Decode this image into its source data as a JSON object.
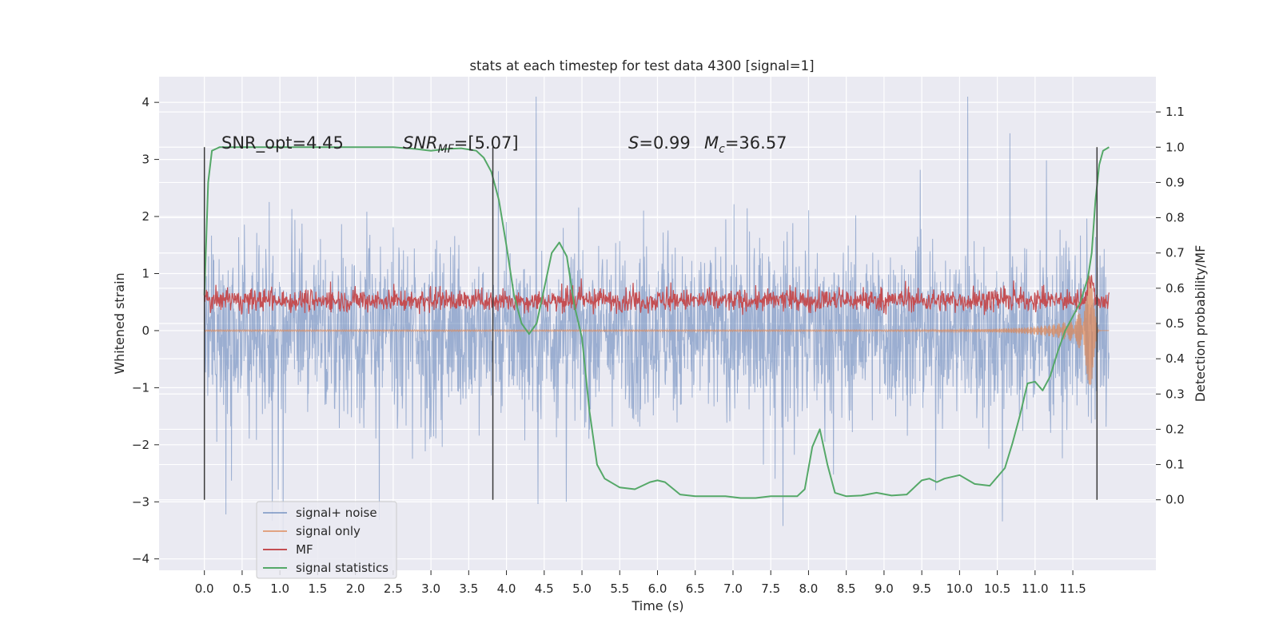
{
  "chart_data": {
    "type": "line",
    "title": "stats at each timestep for test data 4300 [signal=1]",
    "xlabel": "Time (s)",
    "ylabel": "Whitened strain",
    "y2label": "Detection probability/MF",
    "xlim": [
      -0.6,
      12.6
    ],
    "ylim": [
      -4.2,
      4.45
    ],
    "y2lim": [
      -0.2,
      1.2
    ],
    "xticks": [
      "0.0",
      "0.5",
      "1.0",
      "1.5",
      "2.0",
      "2.5",
      "3.0",
      "3.5",
      "4.0",
      "4.5",
      "5.0",
      "5.5",
      "6.0",
      "6.5",
      "7.0",
      "7.5",
      "8.0",
      "8.5",
      "9.0",
      "9.5",
      "10.0",
      "10.5",
      "11.0",
      "11.5"
    ],
    "yticks": [
      "4",
      "3",
      "2",
      "1",
      "0",
      "−1",
      "−2",
      "−3",
      "−4"
    ],
    "y2ticks": [
      "1.1",
      "1.0",
      "0.9",
      "0.8",
      "0.7",
      "0.6",
      "0.5",
      "0.4",
      "0.3",
      "0.2",
      "0.1",
      "0.0"
    ],
    "grid": true,
    "legend_position": "lower-left",
    "annotations": {
      "snr_opt": "SNR_opt=4.45",
      "snr_mf_symbol": "SNR",
      "snr_mf_sub": "MF",
      "snr_mf_value": "=[5.07]",
      "s_symbol": "S",
      "s_value": "=0.99",
      "mc_symbol": "M",
      "mc_sub": "c",
      "mc_value": "=36.57"
    },
    "vertical_markers_x": [
      0.0,
      3.82,
      11.82
    ],
    "series": [
      {
        "name": "signal+ noise",
        "color": "#4c72b0",
        "axis": "left",
        "kind": "noise",
        "t_end": 11.98,
        "y_range": [
          -3.7,
          4.1
        ]
      },
      {
        "name": "signal only",
        "color": "#dd8452",
        "axis": "left",
        "kind": "chirp",
        "t_end": 11.98,
        "y_range": [
          -1.25,
          1.05
        ]
      },
      {
        "name": "MF",
        "color": "#c44e52",
        "axis": "right",
        "kind": "mf",
        "t_end": 11.98,
        "y_range": [
          0.48,
          0.65
        ]
      },
      {
        "name": "signal statistics",
        "color": "#55a868",
        "axis": "right",
        "kind": "line",
        "x": [
          0.0,
          0.05,
          0.1,
          0.15,
          0.2,
          0.3,
          0.5,
          1.0,
          1.5,
          2.0,
          2.5,
          2.8,
          3.0,
          3.2,
          3.4,
          3.6,
          3.7,
          3.8,
          3.85,
          3.9,
          4.0,
          4.1,
          4.2,
          4.3,
          4.4,
          4.5,
          4.6,
          4.7,
          4.8,
          4.9,
          5.0,
          5.1,
          5.2,
          5.3,
          5.5,
          5.7,
          5.9,
          6.0,
          6.1,
          6.3,
          6.5,
          6.7,
          6.9,
          7.1,
          7.3,
          7.5,
          7.7,
          7.85,
          7.95,
          8.05,
          8.15,
          8.25,
          8.35,
          8.5,
          8.7,
          8.9,
          9.1,
          9.3,
          9.5,
          9.6,
          9.7,
          9.8,
          10.0,
          10.2,
          10.4,
          10.6,
          10.7,
          10.8,
          10.9,
          11.0,
          11.1,
          11.2,
          11.3,
          11.4,
          11.5,
          11.6,
          11.7,
          11.75,
          11.8,
          11.85,
          11.9,
          11.98
        ],
        "y": [
          0.58,
          0.9,
          0.99,
          0.995,
          1.0,
          1.0,
          1.0,
          1.0,
          1.0,
          1.0,
          1.0,
          0.995,
          0.99,
          0.995,
          0.997,
          0.99,
          0.97,
          0.93,
          0.89,
          0.85,
          0.72,
          0.58,
          0.5,
          0.47,
          0.5,
          0.6,
          0.7,
          0.73,
          0.69,
          0.55,
          0.46,
          0.25,
          0.1,
          0.06,
          0.035,
          0.03,
          0.05,
          0.055,
          0.05,
          0.015,
          0.01,
          0.01,
          0.01,
          0.005,
          0.005,
          0.01,
          0.01,
          0.01,
          0.03,
          0.15,
          0.2,
          0.1,
          0.02,
          0.01,
          0.012,
          0.02,
          0.012,
          0.015,
          0.055,
          0.06,
          0.05,
          0.06,
          0.07,
          0.045,
          0.04,
          0.09,
          0.16,
          0.24,
          0.33,
          0.335,
          0.31,
          0.35,
          0.42,
          0.48,
          0.52,
          0.56,
          0.63,
          0.7,
          0.85,
          0.95,
          0.99,
          1.0
        ]
      }
    ]
  }
}
